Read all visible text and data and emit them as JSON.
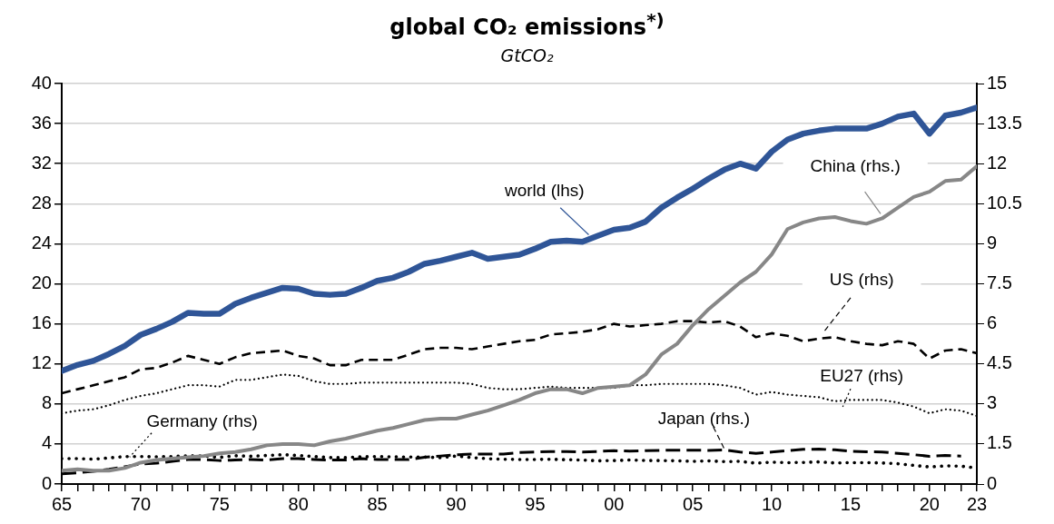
{
  "chart_data": {
    "type": "line",
    "title": "global CO₂ emissions$^{*)}$",
    "subtitle": "GtCO₂",
    "x": [
      1965,
      1966,
      1967,
      1968,
      1969,
      1970,
      1971,
      1972,
      1973,
      1974,
      1975,
      1976,
      1977,
      1978,
      1979,
      1980,
      1981,
      1982,
      1983,
      1984,
      1985,
      1986,
      1987,
      1988,
      1989,
      1990,
      1991,
      1992,
      1993,
      1994,
      1995,
      1996,
      1997,
      1998,
      1999,
      2000,
      2001,
      2002,
      2003,
      2004,
      2005,
      2006,
      2007,
      2008,
      2009,
      2010,
      2011,
      2012,
      2013,
      2014,
      2015,
      2016,
      2017,
      2018,
      2019,
      2020,
      2021,
      2022,
      2023
    ],
    "xlim": [
      1965,
      2023
    ],
    "xticks": [
      {
        "value": 1965,
        "label": "65"
      },
      {
        "value": 1966,
        "label": null
      },
      {
        "value": 1967,
        "label": null
      },
      {
        "value": 1968,
        "label": null
      },
      {
        "value": 1969,
        "label": null
      },
      {
        "value": 1970,
        "label": "70"
      },
      {
        "value": 1971,
        "label": null
      },
      {
        "value": 1972,
        "label": null
      },
      {
        "value": 1973,
        "label": null
      },
      {
        "value": 1974,
        "label": null
      },
      {
        "value": 1975,
        "label": "75"
      },
      {
        "value": 1976,
        "label": null
      },
      {
        "value": 1977,
        "label": null
      },
      {
        "value": 1978,
        "label": null
      },
      {
        "value": 1979,
        "label": null
      },
      {
        "value": 1980,
        "label": "80"
      },
      {
        "value": 1981,
        "label": null
      },
      {
        "value": 1982,
        "label": null
      },
      {
        "value": 1983,
        "label": null
      },
      {
        "value": 1984,
        "label": null
      },
      {
        "value": 1985,
        "label": "85"
      },
      {
        "value": 1986,
        "label": null
      },
      {
        "value": 1987,
        "label": null
      },
      {
        "value": 1988,
        "label": null
      },
      {
        "value": 1989,
        "label": null
      },
      {
        "value": 1990,
        "label": "90"
      },
      {
        "value": 1991,
        "label": null
      },
      {
        "value": 1992,
        "label": null
      },
      {
        "value": 1993,
        "label": null
      },
      {
        "value": 1994,
        "label": null
      },
      {
        "value": 1995,
        "label": "95"
      },
      {
        "value": 1996,
        "label": null
      },
      {
        "value": 1997,
        "label": null
      },
      {
        "value": 1998,
        "label": null
      },
      {
        "value": 1999,
        "label": null
      },
      {
        "value": 2000,
        "label": "00"
      },
      {
        "value": 2001,
        "label": null
      },
      {
        "value": 2002,
        "label": null
      },
      {
        "value": 2003,
        "label": null
      },
      {
        "value": 2004,
        "label": null
      },
      {
        "value": 2005,
        "label": "05"
      },
      {
        "value": 2006,
        "label": null
      },
      {
        "value": 2007,
        "label": null
      },
      {
        "value": 2008,
        "label": null
      },
      {
        "value": 2009,
        "label": null
      },
      {
        "value": 2010,
        "label": "10"
      },
      {
        "value": 2011,
        "label": null
      },
      {
        "value": 2012,
        "label": null
      },
      {
        "value": 2013,
        "label": null
      },
      {
        "value": 2014,
        "label": null
      },
      {
        "value": 2015,
        "label": "15"
      },
      {
        "value": 2016,
        "label": null
      },
      {
        "value": 2017,
        "label": null
      },
      {
        "value": 2018,
        "label": null
      },
      {
        "value": 2019,
        "label": null
      },
      {
        "value": 2020,
        "label": "20"
      },
      {
        "value": 2021,
        "label": null
      },
      {
        "value": 2022,
        "label": null
      },
      {
        "value": 2023,
        "label": "23"
      }
    ],
    "ylim": [
      0,
      40
    ],
    "yticks": [
      0,
      4,
      8,
      12,
      16,
      20,
      24,
      28,
      32,
      36,
      40
    ],
    "y2lim": [
      0,
      15
    ],
    "y2ticks": [
      0,
      1.5,
      3,
      4.5,
      6,
      7.5,
      9,
      10.5,
      12,
      13.5,
      15
    ],
    "grid": "y",
    "legend": false,
    "series": [
      {
        "name": "world (lhs)",
        "color": "#2f5597",
        "line_style": "solid",
        "values": [
          11.3,
          11.9,
          12.3,
          13.0,
          13.8,
          14.9,
          15.5,
          16.2,
          17.1,
          17.0,
          17.0,
          18.0,
          18.6,
          19.1,
          19.6,
          19.5,
          19.0,
          18.9,
          19.0,
          19.6,
          20.3,
          20.6,
          21.2,
          22.0,
          22.3,
          22.7,
          23.1,
          22.5,
          22.7,
          22.9,
          23.5,
          24.2,
          24.3,
          24.2,
          24.8,
          25.4,
          25.6,
          26.2,
          27.6,
          28.6,
          29.5,
          30.5,
          31.4,
          32.0,
          31.5,
          33.2,
          34.4,
          35.0,
          35.3,
          35.5,
          35.5,
          35.5,
          36.0,
          36.7,
          37.0,
          35.0,
          36.8,
          37.1,
          37.6
        ]
      },
      {
        "name": "China (rhs.)",
        "color": "#878787",
        "line_style": "solid",
        "axis": "y2",
        "values": [
          0.5,
          0.55,
          0.5,
          0.5,
          0.6,
          0.8,
          0.9,
          0.95,
          1.0,
          1.05,
          1.15,
          1.2,
          1.3,
          1.45,
          1.5,
          1.5,
          1.45,
          1.6,
          1.7,
          1.85,
          2.0,
          2.1,
          2.25,
          2.4,
          2.45,
          2.45,
          2.6,
          2.75,
          2.95,
          3.15,
          3.4,
          3.55,
          3.55,
          3.4,
          3.6,
          3.65,
          3.7,
          4.1,
          4.85,
          5.25,
          5.95,
          6.55,
          7.05,
          7.55,
          7.95,
          8.6,
          9.55,
          9.8,
          9.95,
          10.0,
          9.85,
          9.75,
          9.95,
          10.35,
          10.75,
          10.95,
          11.35,
          11.4,
          11.9
        ]
      },
      {
        "name": "US (rhs)",
        "color": "#000000",
        "line_style": "dashed",
        "axis": "y2",
        "values": [
          3.4,
          3.55,
          3.7,
          3.85,
          4.0,
          4.3,
          4.35,
          4.55,
          4.8,
          4.65,
          4.5,
          4.75,
          4.9,
          4.95,
          5.0,
          4.8,
          4.7,
          4.45,
          4.45,
          4.65,
          4.65,
          4.65,
          4.85,
          5.05,
          5.1,
          5.1,
          5.05,
          5.15,
          5.25,
          5.35,
          5.4,
          5.6,
          5.65,
          5.7,
          5.8,
          6.0,
          5.9,
          5.95,
          6.0,
          6.1,
          6.1,
          6.05,
          6.1,
          5.9,
          5.5,
          5.65,
          5.55,
          5.35,
          5.45,
          5.5,
          5.35,
          5.25,
          5.2,
          5.35,
          5.25,
          4.7,
          5.0,
          5.05,
          4.9
        ]
      },
      {
        "name": "EU27 (rhs)",
        "color": "#000000",
        "line_style": "dotted",
        "axis": "y2",
        "values": [
          2.65,
          2.75,
          2.8,
          2.95,
          3.15,
          3.3,
          3.4,
          3.55,
          3.7,
          3.7,
          3.65,
          3.9,
          3.9,
          4.0,
          4.1,
          4.05,
          3.85,
          3.75,
          3.75,
          3.8,
          3.8,
          3.8,
          3.8,
          3.8,
          3.8,
          3.8,
          3.75,
          3.6,
          3.55,
          3.55,
          3.6,
          3.65,
          3.6,
          3.6,
          3.6,
          3.6,
          3.7,
          3.7,
          3.75,
          3.75,
          3.75,
          3.75,
          3.7,
          3.6,
          3.35,
          3.45,
          3.35,
          3.3,
          3.25,
          3.1,
          3.15,
          3.15,
          3.15,
          3.05,
          2.9,
          2.65,
          2.8,
          2.75,
          2.55
        ]
      },
      {
        "name": "Japan (rhs.)",
        "color": "#000000",
        "line_style": "dashed",
        "axis": "y2",
        "values": [
          0.38,
          0.42,
          0.48,
          0.55,
          0.65,
          0.75,
          0.78,
          0.85,
          0.92,
          0.92,
          0.88,
          0.9,
          0.92,
          0.9,
          0.95,
          0.95,
          0.92,
          0.9,
          0.9,
          0.95,
          0.92,
          0.92,
          0.92,
          1.0,
          1.05,
          1.1,
          1.12,
          1.12,
          1.12,
          1.18,
          1.2,
          1.22,
          1.22,
          1.2,
          1.22,
          1.25,
          1.23,
          1.25,
          1.26,
          1.27,
          1.27,
          1.26,
          1.28,
          1.2,
          1.15,
          1.2,
          1.25,
          1.3,
          1.31,
          1.28,
          1.23,
          1.21,
          1.2,
          1.15,
          1.1,
          1.04,
          1.07,
          1.05,
          null
        ]
      },
      {
        "name": "Germany (rhs)",
        "color": "#000000",
        "line_style": "dotted",
        "axis": "y2",
        "values": [
          0.95,
          0.95,
          0.93,
          0.98,
          1.03,
          1.03,
          1.02,
          1.03,
          1.06,
          1.05,
          1.0,
          1.06,
          1.04,
          1.07,
          1.1,
          1.07,
          1.03,
          0.99,
          0.99,
          1.02,
          1.03,
          1.02,
          1.01,
          1.01,
          0.99,
          1.05,
          0.99,
          0.95,
          0.93,
          0.92,
          0.92,
          0.93,
          0.91,
          0.9,
          0.87,
          0.88,
          0.9,
          0.88,
          0.88,
          0.87,
          0.85,
          0.87,
          0.84,
          0.85,
          0.78,
          0.82,
          0.8,
          0.81,
          0.83,
          0.79,
          0.8,
          0.8,
          0.79,
          0.76,
          0.7,
          0.64,
          0.68,
          0.67,
          0.6
        ]
      }
    ]
  }
}
